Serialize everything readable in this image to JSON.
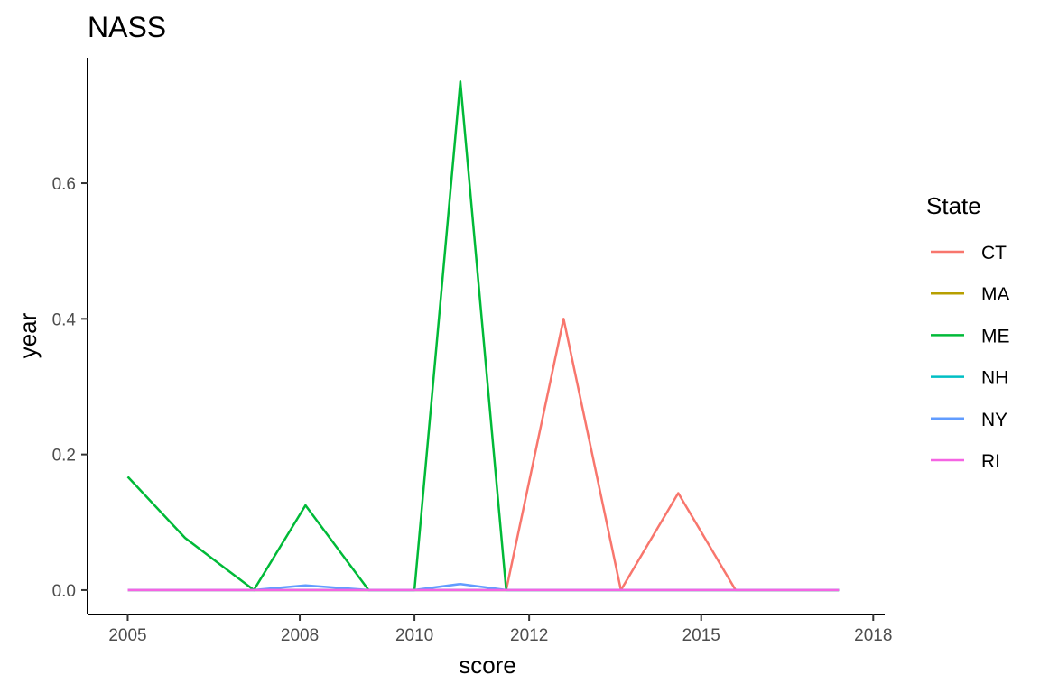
{
  "chart_data": {
    "type": "line",
    "title": "NASS",
    "xlabel": "score",
    "ylabel": "year",
    "xlim": [
      2004.3,
      2018.2
    ],
    "ylim": [
      -0.036,
      0.785
    ],
    "x_ticks": [
      2005,
      2008,
      2010,
      2012,
      2015,
      2018
    ],
    "y_ticks": [
      0.0,
      0.2,
      0.4,
      0.6
    ],
    "y_tick_labels": [
      "0.0",
      "0.2",
      "0.4",
      "0.6"
    ],
    "x": [
      2005.0,
      2006.0,
      2007.2,
      2008.1,
      2009.2,
      2010.0,
      2010.8,
      2011.6,
      2012.6,
      2013.6,
      2014.6,
      2015.6,
      2017.4
    ],
    "grid": false,
    "legend_position": "right",
    "legend_title": "State",
    "series": [
      {
        "name": "CT",
        "color": "#F8766D",
        "values": [
          0,
          0,
          0,
          0,
          0,
          0,
          0,
          0,
          0.4,
          0,
          0.143,
          0,
          0
        ]
      },
      {
        "name": "MA",
        "color": "#B79F00",
        "values": [
          0,
          0,
          0,
          0,
          0,
          0,
          0,
          0,
          0,
          0,
          0,
          0,
          0
        ]
      },
      {
        "name": "ME",
        "color": "#00BA38",
        "values": [
          0.167,
          0.077,
          0,
          0.125,
          0,
          0,
          0.75,
          0,
          0,
          0,
          0,
          0,
          0
        ]
      },
      {
        "name": "NH",
        "color": "#00BFC4",
        "values": [
          0,
          0,
          0,
          0,
          0,
          0,
          0,
          0,
          0,
          0,
          0,
          0,
          0
        ]
      },
      {
        "name": "NY",
        "color": "#619CFF",
        "values": [
          0,
          0,
          0,
          0.007,
          0,
          0,
          0.009,
          0,
          0,
          0,
          0,
          0,
          0
        ]
      },
      {
        "name": "RI",
        "color": "#F564E3",
        "values": [
          0,
          0,
          0,
          0,
          0,
          0,
          0,
          0,
          0,
          0,
          0,
          0,
          0
        ]
      }
    ]
  }
}
